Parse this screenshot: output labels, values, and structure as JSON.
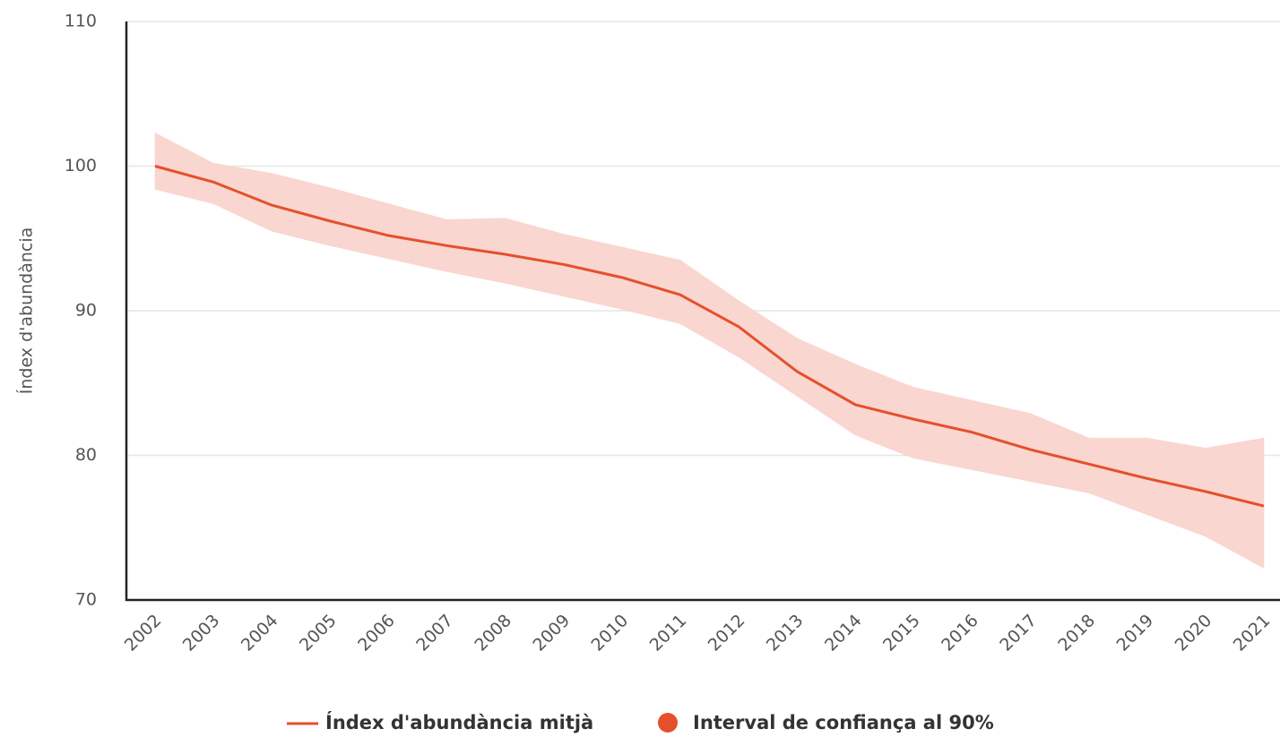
{
  "chart_data": {
    "type": "line",
    "y_label": "Índex d'abundància",
    "categories": [
      "2002",
      "2003",
      "2004",
      "2005",
      "2006",
      "2007",
      "2008",
      "2009",
      "2010",
      "2011",
      "2012",
      "2013",
      "2014",
      "2015",
      "2016",
      "2017",
      "2018",
      "2019",
      "2020",
      "2021"
    ],
    "series": [
      {
        "name": "Índex d'abundància mitjà",
        "color": "#e5502c",
        "values": [
          100.0,
          98.9,
          97.3,
          96.2,
          95.2,
          94.5,
          93.9,
          93.2,
          92.3,
          91.1,
          88.9,
          85.8,
          83.5,
          82.5,
          81.6,
          80.4,
          79.4,
          78.4,
          77.5,
          76.5
        ]
      }
    ],
    "band": {
      "name": "Interval de confiança al 90%",
      "color": "#f9d6cf",
      "legend_color": "#e5502c",
      "upper": [
        102.3,
        100.2,
        99.5,
        98.5,
        97.4,
        96.3,
        96.4,
        95.3,
        94.4,
        93.5,
        90.7,
        88.1,
        86.3,
        84.7,
        83.8,
        82.9,
        81.2,
        81.2,
        80.5,
        81.2
      ],
      "lower": [
        98.4,
        97.4,
        95.5,
        94.5,
        93.6,
        92.7,
        91.9,
        91.0,
        90.1,
        89.1,
        86.8,
        84.1,
        81.4,
        79.8,
        79.0,
        78.2,
        77.4,
        75.9,
        74.4,
        72.2
      ]
    },
    "ylim": [
      70,
      110
    ],
    "yticks": [
      70,
      80,
      90,
      100,
      110
    ],
    "grid": true
  }
}
